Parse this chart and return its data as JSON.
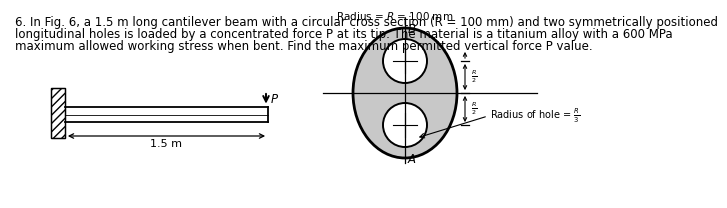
{
  "title_line1": "6. In Fig. 6, a 1.5 m long cantilever beam with a circular cross section (R = 100 mm) and two symmetrically positioned",
  "title_line2": "longitudinal holes is loaded by a concentrated force P at its tip. The material is a titanium alloy with a 600 MPa",
  "title_line3": "maximum allowed working stress when bent. Find the maximum permitted vertical force P value.",
  "bg_color": "#ffffff",
  "circle_fill": "#c8c8c8",
  "font_size_title": 8.5,
  "font_size_small": 7.0
}
